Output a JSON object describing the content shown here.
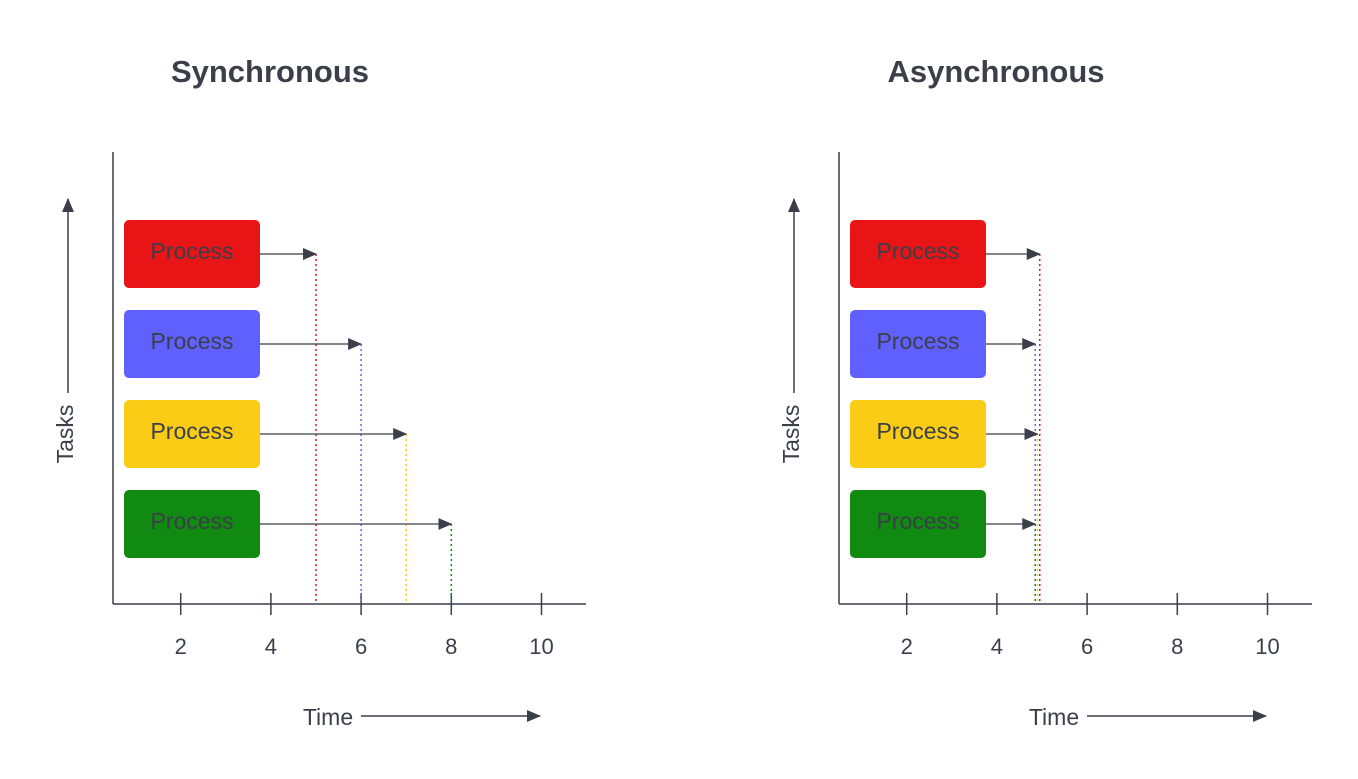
{
  "diagram": {
    "panels": [
      {
        "id": "synchronous",
        "title": "Synchronous",
        "y_axis_label": "Tasks",
        "x_axis_label": "Time",
        "ticks": [
          "2",
          "4",
          "6",
          "8",
          "10"
        ],
        "tick_values": [
          2,
          4,
          6,
          8,
          10
        ],
        "processes": [
          {
            "label": "Process",
            "color": "#e81416",
            "end_time": 5
          },
          {
            "label": "Process",
            "color": "#6060ff",
            "end_time": 6
          },
          {
            "label": "Process",
            "color": "#facc15",
            "end_time": 7
          },
          {
            "label": "Process",
            "color": "#108a10",
            "end_time": 8
          }
        ]
      },
      {
        "id": "asynchronous",
        "title": "Asynchronous",
        "y_axis_label": "Tasks",
        "x_axis_label": "Time",
        "ticks": [
          "2",
          "4",
          "6",
          "8",
          "10"
        ],
        "tick_values": [
          2,
          4,
          6,
          8,
          10
        ],
        "processes": [
          {
            "label": "Process",
            "color": "#e81416",
            "end_time": 4.95
          },
          {
            "label": "Process",
            "color": "#6060ff",
            "end_time": 4.85
          },
          {
            "label": "Process",
            "color": "#facc15",
            "end_time": 4.9
          },
          {
            "label": "Process",
            "color": "#108a10",
            "end_time": 4.85
          }
        ]
      }
    ]
  }
}
